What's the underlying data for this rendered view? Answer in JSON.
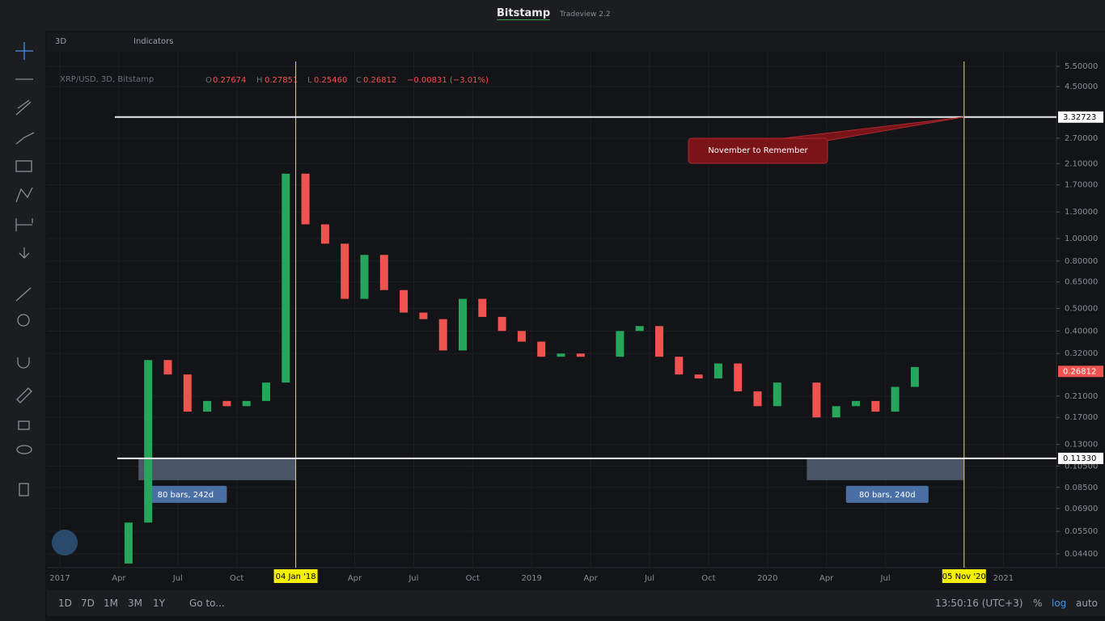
{
  "header": {
    "title": "Bitstamp",
    "version": "Tradeview 2.2"
  },
  "toolbar": {
    "interval": "3D",
    "indicators": "Indicators"
  },
  "legend": {
    "symbol": "XRP/USD, 3D, Bitstamp",
    "o_label": "O",
    "open": "0.27674",
    "h_label": "H",
    "high": "0.27851",
    "l_label": "L",
    "low": "0.25460",
    "c_label": "C",
    "close": "0.26812",
    "change": "−0.00831 (−3.01%)"
  },
  "chart_data": {
    "type": "candlestick",
    "log_scale": true,
    "x": [
      "2017-03",
      "2017-04",
      "2017-05",
      "2017-06",
      "2017-07",
      "2017-08",
      "2017-09",
      "2017-10",
      "2017-11",
      "2017-12",
      "2018-01",
      "2018-02",
      "2018-03",
      "2018-04",
      "2018-05",
      "2018-06",
      "2018-07",
      "2018-08",
      "2018-09",
      "2018-10",
      "2018-11",
      "2018-12",
      "2019-01",
      "2019-02",
      "2019-03",
      "2019-04",
      "2019-05",
      "2019-06",
      "2019-07",
      "2019-08",
      "2019-09",
      "2019-10",
      "2019-11",
      "2019-12",
      "2020-01",
      "2020-02",
      "2020-03",
      "2020-04",
      "2020-05",
      "2020-06",
      "2020-07",
      "2020-08"
    ],
    "values": [
      0.04,
      0.06,
      0.3,
      0.26,
      0.18,
      0.2,
      0.19,
      0.2,
      0.24,
      1.9,
      1.15,
      0.95,
      0.55,
      0.85,
      0.6,
      0.48,
      0.45,
      0.33,
      0.55,
      0.46,
      0.4,
      0.36,
      0.31,
      0.32,
      0.31,
      0.31,
      0.4,
      0.42,
      0.31,
      0.26,
      0.25,
      0.29,
      0.22,
      0.19,
      0.24,
      0.24,
      0.17,
      0.19,
      0.2,
      0.18,
      0.23,
      0.28
    ],
    "up_color": "#26a65b",
    "down_color": "#ef5350",
    "ylim": [
      0.0384,
      5.68
    ],
    "yticks": [
      {
        "value": 5.5,
        "label": "5.50000"
      },
      {
        "value": 4.5,
        "label": "4.50000"
      },
      {
        "value": 2.7,
        "label": "2.70000"
      },
      {
        "value": 2.1,
        "label": "2.10000"
      },
      {
        "value": 1.7,
        "label": "1.70000"
      },
      {
        "value": 1.3,
        "label": "1.30000"
      },
      {
        "value": 1,
        "label": "1.00000"
      },
      {
        "value": 0.8,
        "label": "0.80000"
      },
      {
        "value": 0.65,
        "label": "0.65000"
      },
      {
        "value": 0.5,
        "label": "0.50000"
      },
      {
        "value": 0.4,
        "label": "0.40000"
      },
      {
        "value": 0.32,
        "label": "0.32000"
      },
      {
        "value": 0.21,
        "label": "0.21000"
      },
      {
        "value": 0.17,
        "label": "0.17000"
      },
      {
        "value": 0.13,
        "label": "0.13000"
      },
      {
        "value": 0.105,
        "label": "0.10500"
      },
      {
        "value": 0.085,
        "label": "0.08500"
      },
      {
        "value": 0.069,
        "label": "0.06900"
      },
      {
        "value": 0.055,
        "label": "0.05500"
      },
      {
        "value": 0.044,
        "label": "0.04400"
      }
    ],
    "xticks": [
      {
        "value": "2017-01",
        "label": "2017"
      },
      {
        "value": "2017-04",
        "label": "Apr"
      },
      {
        "value": "2017-07",
        "label": "Jul"
      },
      {
        "value": "2017-10",
        "label": "Oct"
      },
      {
        "value": "2018-04",
        "label": "Apr"
      },
      {
        "value": "2018-07",
        "label": "Jul"
      },
      {
        "value": "2018-10",
        "label": "Oct"
      },
      {
        "value": "2019-01",
        "label": "2019"
      },
      {
        "value": "2019-04",
        "label": "Apr"
      },
      {
        "value": "2019-07",
        "label": "Jul"
      },
      {
        "value": "2019-10",
        "label": "Oct"
      },
      {
        "value": "2020-01",
        "label": "2020"
      },
      {
        "value": "2020-04",
        "label": "Apr"
      },
      {
        "value": "2020-07",
        "label": "Jul"
      },
      {
        "value": "2021-01",
        "label": "2021"
      }
    ],
    "grid": true,
    "last_price": {
      "value": 0.26812,
      "label": "0.26812"
    },
    "hlines": [
      {
        "value": 3.32723,
        "label": "3.32723"
      },
      {
        "value": 0.1133,
        "label": "0.11330"
      }
    ],
    "vlines": [
      {
        "value": "2018-01",
        "label": "04 Jan '18"
      },
      {
        "value": "2020-11",
        "label": "05 Nov '20"
      }
    ],
    "ranges": [
      {
        "start": "2017-05",
        "end": "2018-01",
        "label": "80 bars, 242d"
      },
      {
        "start": "2020-03",
        "end": "2020-11",
        "label": "80 bars, 240d"
      }
    ],
    "annotation": "November to Remember"
  },
  "footer": {
    "periods": [
      "1D",
      "7D",
      "1M",
      "3M",
      "1Y"
    ],
    "goto": "Go to...",
    "clock": "13:50:16 (UTC+3)",
    "percent": "%",
    "log": "log",
    "auto": "auto"
  }
}
